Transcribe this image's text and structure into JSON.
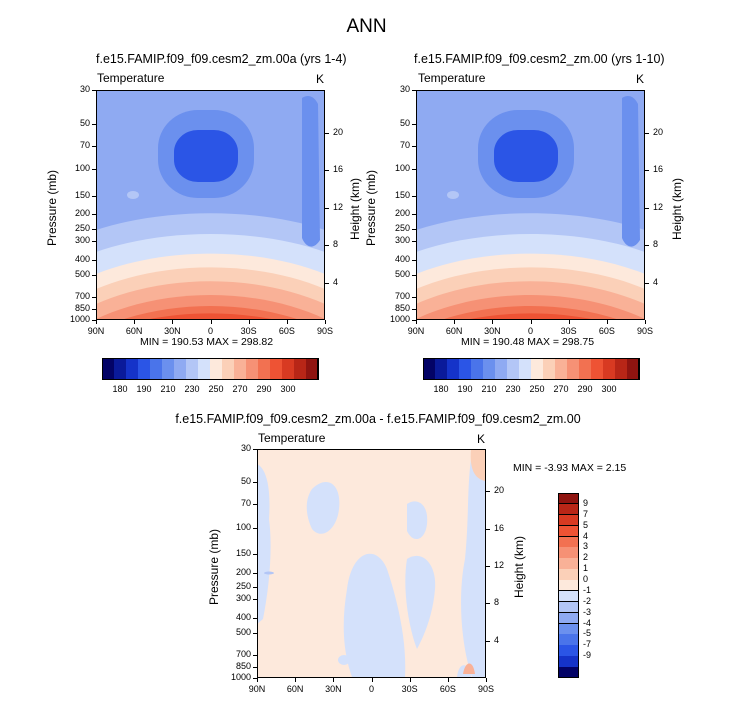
{
  "figure": {
    "title": "ANN",
    "palette": {
      "cold": [
        "#030366",
        "#0a1a9a",
        "#1533c9",
        "#2b55e6",
        "#4a74ea",
        "#6b90ee",
        "#8faaf2",
        "#b3c6f6",
        "#d4e1fb"
      ],
      "neutral": "#fde9dc",
      "warm": [
        "#fbd0b8",
        "#f9b197",
        "#f69175",
        "#f27151",
        "#ee5334",
        "#d83a22",
        "#b82617",
        "#8f1410"
      ]
    }
  },
  "chart_data": [
    {
      "type": "heatmap",
      "id": "panel-1",
      "title": "f.e15.FAMIP.f09_f09.cesm2_zm.00a (yrs 1-4)",
      "variable_label": "Temperature",
      "units": "K",
      "xlabel": "",
      "ylabel": "Pressure (mb)",
      "ylabel_right": "Height (km)",
      "x_ticks": [
        "90N",
        "60N",
        "30N",
        "0",
        "30S",
        "60S",
        "90S"
      ],
      "y_ticks": [
        30,
        50,
        70,
        100,
        150,
        200,
        250,
        300,
        400,
        500,
        700,
        850,
        1000
      ],
      "y_right_ticks": [
        4,
        8,
        12,
        16,
        20
      ],
      "ylim": [
        1000,
        30
      ],
      "y_scale": "log",
      "min": 190.53,
      "max": 298.82,
      "min_max_text": "MIN = 190.53   MAX = 298.82",
      "colorbar": {
        "orientation": "horizontal",
        "labels": [
          "180",
          "190",
          "210",
          "230",
          "250",
          "270",
          "290",
          "300"
        ],
        "colors": [
          "#030366",
          "#0a1a9a",
          "#1533c9",
          "#2b55e6",
          "#4a74ea",
          "#6b90ee",
          "#8faaf2",
          "#b3c6f6",
          "#d4e1fb",
          "#fde9dc",
          "#fbd0b8",
          "#f9b197",
          "#f69175",
          "#f27151",
          "#ee5334",
          "#d83a22",
          "#b82617",
          "#8f1410"
        ]
      }
    },
    {
      "type": "heatmap",
      "id": "panel-2",
      "title": "f.e15.FAMIP.f09_f09.cesm2_zm.00 (yrs 1-10)",
      "variable_label": "Temperature",
      "units": "K",
      "xlabel": "",
      "ylabel": "Pressure (mb)",
      "ylabel_right": "Height (km)",
      "x_ticks": [
        "90N",
        "60N",
        "30N",
        "0",
        "30S",
        "60S",
        "90S"
      ],
      "y_ticks": [
        30,
        50,
        70,
        100,
        150,
        200,
        250,
        300,
        400,
        500,
        700,
        850,
        1000
      ],
      "y_right_ticks": [
        4,
        8,
        12,
        16,
        20
      ],
      "ylim": [
        1000,
        30
      ],
      "y_scale": "log",
      "min": 190.48,
      "max": 298.75,
      "min_max_text": "MIN = 190.48   MAX = 298.75",
      "colorbar": {
        "orientation": "horizontal",
        "labels": [
          "180",
          "190",
          "210",
          "230",
          "250",
          "270",
          "290",
          "300"
        ],
        "colors": [
          "#030366",
          "#0a1a9a",
          "#1533c9",
          "#2b55e6",
          "#4a74ea",
          "#6b90ee",
          "#8faaf2",
          "#b3c6f6",
          "#d4e1fb",
          "#fde9dc",
          "#fbd0b8",
          "#f9b197",
          "#f69175",
          "#f27151",
          "#ee5334",
          "#d83a22",
          "#b82617",
          "#8f1410"
        ]
      }
    },
    {
      "type": "heatmap",
      "id": "panel-3",
      "title": "f.e15.FAMIP.f09_f09.cesm2_zm.00a - f.e15.FAMIP.f09_f09.cesm2_zm.00",
      "variable_label": "Temperature",
      "units": "K",
      "xlabel": "",
      "ylabel": "Pressure (mb)",
      "ylabel_right": "Height (km)",
      "x_ticks": [
        "90N",
        "60N",
        "30N",
        "0",
        "30S",
        "60S",
        "90S"
      ],
      "y_ticks": [
        30,
        50,
        70,
        100,
        150,
        200,
        250,
        300,
        400,
        500,
        700,
        850,
        1000
      ],
      "y_right_ticks": [
        4,
        8,
        12,
        16,
        20
      ],
      "ylim": [
        1000,
        30
      ],
      "y_scale": "log",
      "min": -3.93,
      "max": 2.15,
      "min_max_text": "MIN =  -3.93  MAX =   2.15",
      "colorbar": {
        "orientation": "vertical",
        "labels": [
          "9",
          "7",
          "5",
          "4",
          "3",
          "2",
          "1",
          "0",
          "-1",
          "-2",
          "-3",
          "-4",
          "-5",
          "-7",
          "-9"
        ],
        "colors": [
          "#8f1410",
          "#b82617",
          "#d83a22",
          "#ee5334",
          "#f27151",
          "#f69175",
          "#f9b197",
          "#fbd0b8",
          "#fde9dc",
          "#d4e1fb",
          "#b3c6f6",
          "#8faaf2",
          "#6b90ee",
          "#4a74ea",
          "#2b55e6",
          "#1533c9",
          "#030366"
        ]
      }
    }
  ]
}
